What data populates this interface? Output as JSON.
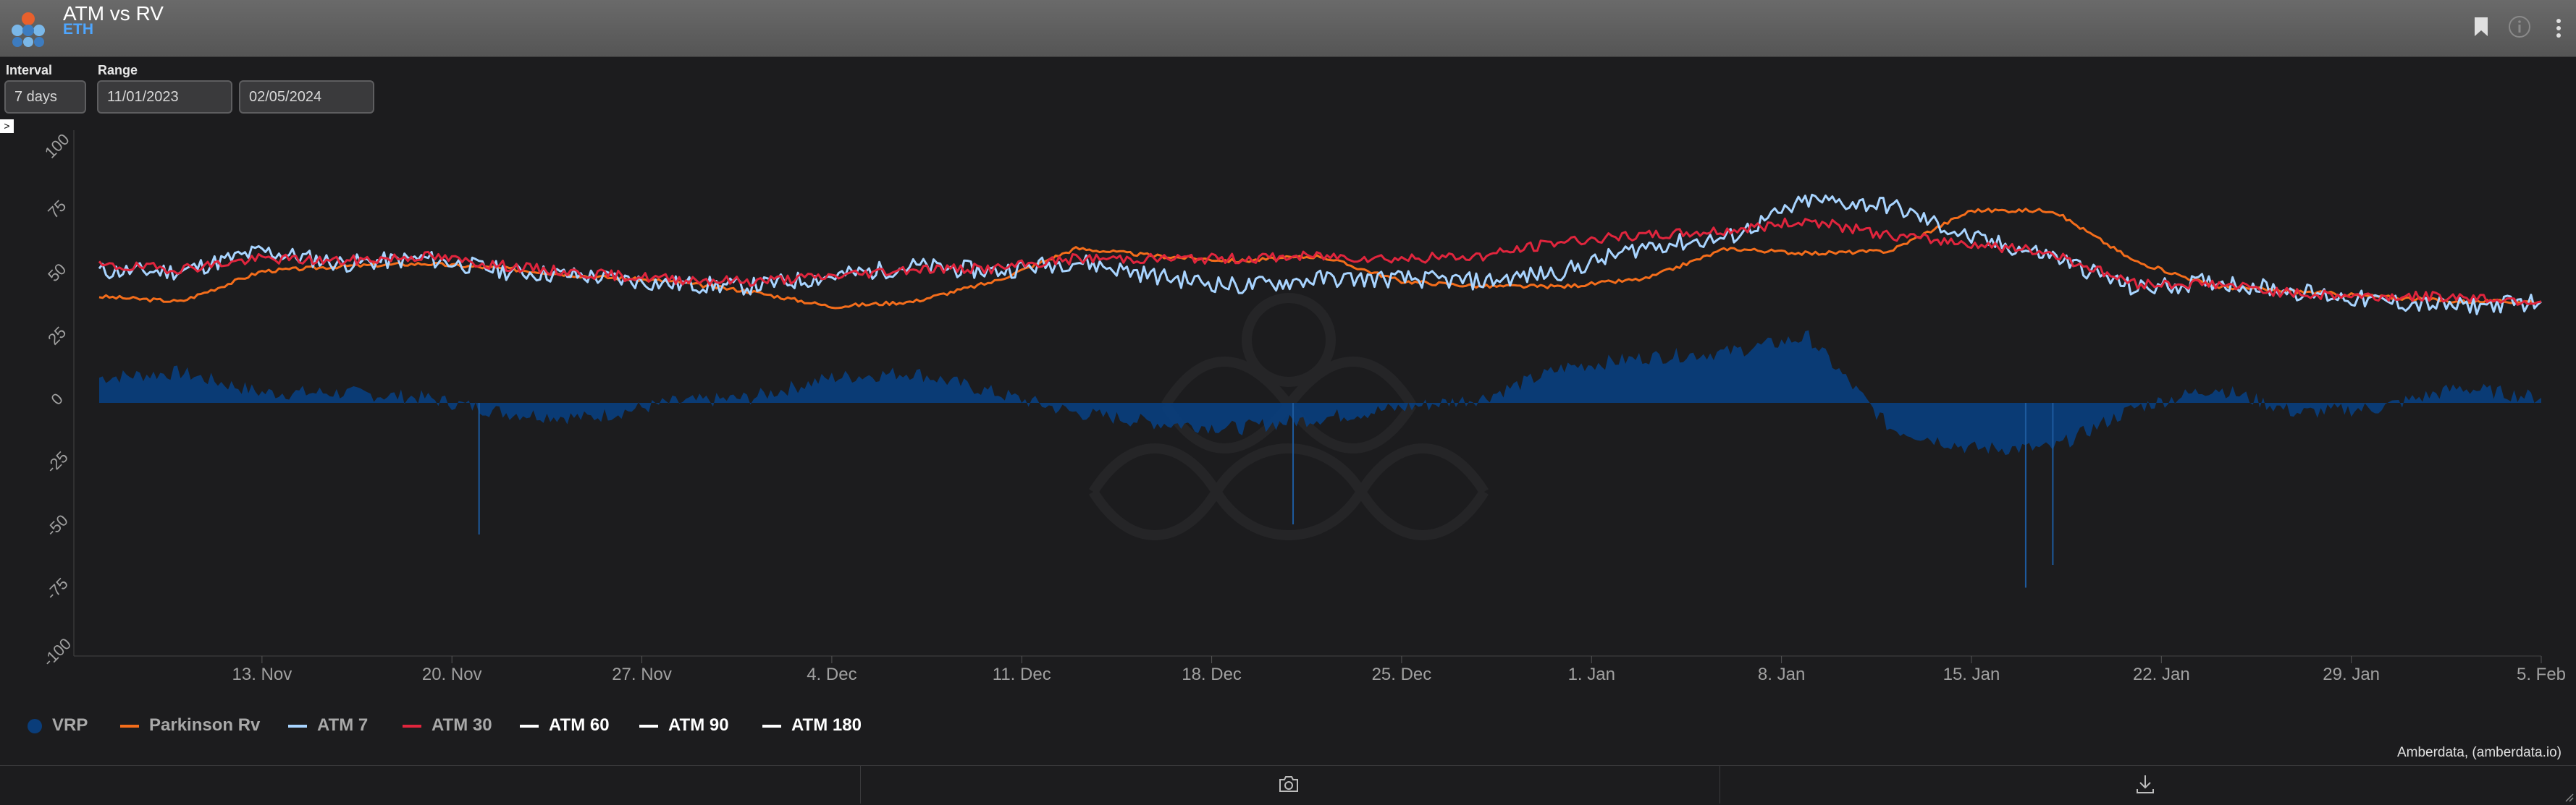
{
  "header": {
    "title": "ATM vs RV",
    "subtitle": "ETH",
    "icons": [
      "bookmark-icon",
      "info-icon",
      "more-vertical-icon"
    ]
  },
  "controls": {
    "interval_label": "Interval",
    "interval_value": "7 days",
    "range_label": "Range",
    "range_start": "11/01/2023",
    "range_end": "02/05/2024",
    "expand_glyph": ">"
  },
  "legend": [
    {
      "name": "VRP",
      "color": "#0a3d7a",
      "marker": "dot",
      "active": false
    },
    {
      "name": "Parkinson Rv",
      "color": "#f46d1b",
      "marker": "line",
      "active": false
    },
    {
      "name": "ATM 7",
      "color": "#a8d4ff",
      "marker": "line",
      "active": false
    },
    {
      "name": "ATM 30",
      "color": "#e0253d",
      "marker": "line",
      "active": false
    },
    {
      "name": "ATM 60",
      "color": "#ffffff",
      "marker": "line",
      "active": true
    },
    {
      "name": "ATM 90",
      "color": "#ffffff",
      "marker": "line",
      "active": true
    },
    {
      "name": "ATM 180",
      "color": "#ffffff",
      "marker": "line",
      "active": true
    }
  ],
  "footer": {
    "credit": "Amberdata, (amberdata.io)",
    "icons": [
      "camera-icon",
      "download-icon"
    ]
  },
  "chart_data": {
    "type": "line",
    "x_labels": [
      "13. Nov",
      "20. Nov",
      "27. Nov",
      "4. Dec",
      "11. Dec",
      "18. Dec",
      "25. Dec",
      "1. Jan",
      "8. Jan",
      "15. Jan",
      "22. Jan",
      "29. Jan",
      "5. Feb"
    ],
    "x_range": [
      "2023-11-07",
      "2024-02-05"
    ],
    "y_ticks": [
      100,
      75,
      50,
      25,
      0,
      -25,
      -50,
      -75,
      -100
    ],
    "ylim": [
      -100,
      100
    ],
    "grid": false,
    "legend_position": "bottom-left",
    "x_dates": [
      "2023-11-07",
      "2023-11-10",
      "2023-11-13",
      "2023-11-16",
      "2023-11-19",
      "2023-11-22",
      "2023-11-25",
      "2023-11-28",
      "2023-12-01",
      "2023-12-04",
      "2023-12-07",
      "2023-12-10",
      "2023-12-13",
      "2023-12-16",
      "2023-12-19",
      "2023-12-22",
      "2023-12-25",
      "2023-12-28",
      "2023-12-31",
      "2024-01-03",
      "2024-01-06",
      "2024-01-09",
      "2024-01-12",
      "2024-01-15",
      "2024-01-18",
      "2024-01-21",
      "2024-01-24",
      "2024-01-27",
      "2024-01-30",
      "2024-02-02",
      "2024-02-05"
    ],
    "series": [
      {
        "name": "Parkinson Rv",
        "color": "#f46d1b",
        "values": [
          42,
          40,
          52,
          54,
          55,
          53,
          50,
          48,
          44,
          38,
          40,
          48,
          61,
          58,
          56,
          58,
          48,
          46,
          46,
          49,
          61,
          59,
          60,
          76,
          76,
          56,
          46,
          44,
          42,
          40,
          40
        ]
      },
      {
        "name": "ATM 7",
        "color": "#a8d4ff",
        "values": [
          52,
          52,
          60,
          55,
          57,
          52,
          50,
          47,
          46,
          50,
          54,
          52,
          56,
          50,
          46,
          49,
          49,
          48,
          52,
          62,
          65,
          80,
          78,
          65,
          58,
          45,
          48,
          44,
          40,
          38,
          40
        ]
      },
      {
        "name": "ATM 30",
        "color": "#e0253d",
        "values": [
          54,
          53,
          57,
          56,
          58,
          54,
          51,
          49,
          48,
          50,
          53,
          53,
          57,
          57,
          57,
          58,
          57,
          58,
          64,
          66,
          68,
          72,
          66,
          63,
          59,
          47,
          47,
          43,
          42,
          42,
          40
        ]
      },
      {
        "name": "VRP",
        "color": "#0a3d7a",
        "type": "area",
        "values": [
          10,
          12,
          4,
          4,
          2,
          -4,
          -6,
          0,
          2,
          10,
          12,
          4,
          -4,
          -8,
          -10,
          -6,
          -2,
          2,
          14,
          18,
          20,
          26,
          -10,
          -18,
          -18,
          -2,
          6,
          -4,
          -2,
          6,
          2
        ]
      }
    ],
    "spikes": [
      {
        "series": "VRP",
        "date": "2023-11-21",
        "value": -52
      },
      {
        "series": "VRP",
        "date": "2023-12-21",
        "value": -48
      },
      {
        "series": "VRP",
        "date": "2024-01-17",
        "value": -73
      },
      {
        "series": "VRP",
        "date": "2024-01-18",
        "value": -64
      }
    ]
  }
}
